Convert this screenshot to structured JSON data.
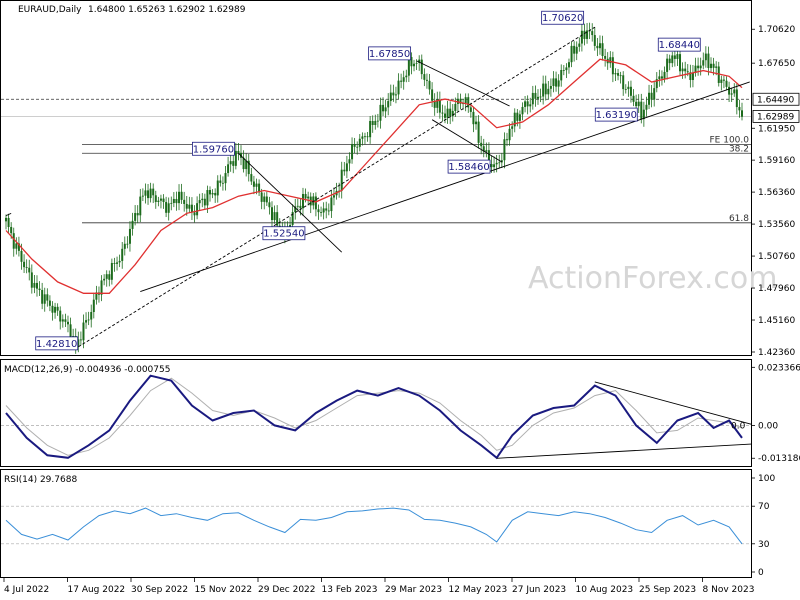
{
  "header": {
    "symbol": "EURAUD,Daily",
    "ohlc": "1.64800 1.65263 1.62902 1.62989"
  },
  "watermark": "ActionForex.com",
  "chart_data": [
    {
      "type": "candlestick",
      "title": "EURAUD,Daily",
      "ohlc_last": {
        "open": 1.648,
        "high": 1.65263,
        "low": 1.62902,
        "close": 1.62989
      },
      "ylim": [
        1.4236,
        1.7248
      ],
      "yticks": [
        "1.70620",
        "1.67650",
        "1.64490",
        "1.62989",
        "1.61950",
        "1.59160",
        "1.56360",
        "1.53560",
        "1.50760",
        "1.47960",
        "1.45160",
        "1.42360"
      ],
      "y_axis_ticks": [
        1.7062,
        1.6765,
        1.6195,
        1.5916,
        1.5636,
        1.5356,
        1.5076,
        1.4796,
        1.4516,
        1.4236
      ],
      "x_dates": [
        "4 Jul 2022",
        "17 Aug 2022",
        "30 Sep 2022",
        "15 Nov 2022",
        "29 Dec 2022",
        "13 Feb 2023",
        "29 Mar 2023",
        "12 May 2023",
        "27 Jun 2023",
        "10 Aug 2023",
        "25 Sep 2023",
        "8 Nov 2023"
      ],
      "close_path": [
        [
          0,
          1.538
        ],
        [
          3,
          1.52
        ],
        [
          6,
          1.505
        ],
        [
          9,
          1.49
        ],
        [
          12,
          1.478
        ],
        [
          15,
          1.47
        ],
        [
          18,
          1.462
        ],
        [
          21,
          1.455
        ],
        [
          24,
          1.445
        ],
        [
          27,
          1.4281
        ],
        [
          30,
          1.445
        ],
        [
          33,
          1.46
        ],
        [
          36,
          1.48
        ],
        [
          39,
          1.49
        ],
        [
          42,
          1.5
        ],
        [
          45,
          1.51
        ],
        [
          48,
          1.53
        ],
        [
          51,
          1.55
        ],
        [
          54,
          1.565
        ],
        [
          57,
          1.56
        ],
        [
          60,
          1.555
        ],
        [
          63,
          1.55
        ],
        [
          66,
          1.56
        ],
        [
          69,
          1.555
        ],
        [
          72,
          1.545
        ],
        [
          75,
          1.555
        ],
        [
          78,
          1.56
        ],
        [
          81,
          1.565
        ],
        [
          84,
          1.575
        ],
        [
          87,
          1.59
        ],
        [
          90,
          1.5976
        ],
        [
          93,
          1.585
        ],
        [
          96,
          1.57
        ],
        [
          99,
          1.56
        ],
        [
          102,
          1.55
        ],
        [
          105,
          1.535
        ],
        [
          108,
          1.5254
        ],
        [
          111,
          1.545
        ],
        [
          114,
          1.555
        ],
        [
          117,
          1.56
        ],
        [
          120,
          1.55
        ],
        [
          123,
          1.545
        ],
        [
          126,
          1.555
        ],
        [
          129,
          1.57
        ],
        [
          132,
          1.59
        ],
        [
          135,
          1.605
        ],
        [
          138,
          1.61
        ],
        [
          141,
          1.62
        ],
        [
          144,
          1.63
        ],
        [
          147,
          1.64
        ],
        [
          150,
          1.65
        ],
        [
          153,
          1.66
        ],
        [
          156,
          1.675
        ],
        [
          159,
          1.6785
        ],
        [
          162,
          1.665
        ],
        [
          165,
          1.645
        ],
        [
          168,
          1.635
        ],
        [
          171,
          1.63
        ],
        [
          174,
          1.64
        ],
        [
          177,
          1.645
        ],
        [
          180,
          1.635
        ],
        [
          183,
          1.61
        ],
        [
          186,
          1.595
        ],
        [
          189,
          1.5846
        ],
        [
          192,
          1.595
        ],
        [
          195,
          1.62
        ],
        [
          198,
          1.63
        ],
        [
          201,
          1.64
        ],
        [
          204,
          1.645
        ],
        [
          207,
          1.65
        ],
        [
          210,
          1.655
        ],
        [
          213,
          1.66
        ],
        [
          216,
          1.67
        ],
        [
          219,
          1.685
        ],
        [
          222,
          1.695
        ],
        [
          225,
          1.7062
        ],
        [
          228,
          1.695
        ],
        [
          231,
          1.685
        ],
        [
          234,
          1.675
        ],
        [
          237,
          1.665
        ],
        [
          240,
          1.655
        ],
        [
          243,
          1.645
        ],
        [
          246,
          1.6319
        ],
        [
          249,
          1.645
        ],
        [
          252,
          1.66
        ],
        [
          255,
          1.67
        ],
        [
          258,
          1.6844
        ],
        [
          261,
          1.675
        ],
        [
          264,
          1.665
        ],
        [
          267,
          1.67
        ],
        [
          270,
          1.68
        ],
        [
          273,
          1.676
        ],
        [
          276,
          1.665
        ],
        [
          279,
          1.655
        ],
        [
          282,
          1.648
        ],
        [
          285,
          1.6299
        ]
      ],
      "series": [
        {
          "name": "",
          "color": "#e03030",
          "values": [
            [
              0,
              1.53
            ],
            [
              10,
              1.505
            ],
            [
              20,
              1.485
            ],
            [
              30,
              1.475
            ],
            [
              40,
              1.475
            ],
            [
              50,
              1.5
            ],
            [
              60,
              1.53
            ],
            [
              70,
              1.545
            ],
            [
              80,
              1.55
            ],
            [
              90,
              1.56
            ],
            [
              100,
              1.565
            ],
            [
              110,
              1.56
            ],
            [
              120,
              1.555
            ],
            [
              130,
              1.565
            ],
            [
              140,
              1.59
            ],
            [
              150,
              1.615
            ],
            [
              160,
              1.64
            ],
            [
              170,
              1.645
            ],
            [
              180,
              1.64
            ],
            [
              190,
              1.62
            ],
            [
              200,
              1.625
            ],
            [
              210,
              1.64
            ],
            [
              220,
              1.66
            ],
            [
              230,
              1.68
            ],
            [
              240,
              1.675
            ],
            [
              250,
              1.66
            ],
            [
              260,
              1.665
            ],
            [
              270,
              1.67
            ],
            [
              280,
              1.665
            ],
            [
              285,
              1.655
            ]
          ]
        }
      ],
      "annotations": [
        "1.70620",
        "1.67850",
        "1.68440",
        "1.59760",
        "1.63190",
        "1.58460",
        "1.52540",
        "1.42810"
      ],
      "levels": [
        {
          "value": 1.6449,
          "label": "1.64490",
          "style": "dashed"
        },
        {
          "value": 1.60518,
          "label": "FE 100.0",
          "style": "solid"
        },
        {
          "value": 1.5976,
          "label": "38.2",
          "style": "solid"
        },
        {
          "value": 1.5367,
          "label": "61.8",
          "style": "solid"
        }
      ],
      "grid": false
    },
    {
      "type": "line",
      "title": "MACD(12,26,9) -0.004936 -0.000755",
      "ylim": [
        -0.0155,
        0.0255
      ],
      "yticks": [
        "0.023366",
        "0.00",
        "0.0",
        "-0.013186"
      ],
      "y_axis_ticks": [
        0.023366,
        0.0,
        -0.013186
      ],
      "series": [
        {
          "name": "",
          "color": "#1a1a80",
          "values": [
            [
              0,
              0.005
            ],
            [
              8,
              -0.005
            ],
            [
              16,
              -0.012
            ],
            [
              24,
              -0.013
            ],
            [
              32,
              -0.008
            ],
            [
              40,
              -0.002
            ],
            [
              48,
              0.01
            ],
            [
              56,
              0.02
            ],
            [
              64,
              0.018
            ],
            [
              72,
              0.008
            ],
            [
              80,
              0.002
            ],
            [
              88,
              0.005
            ],
            [
              96,
              0.006
            ],
            [
              104,
              0.0
            ],
            [
              112,
              -0.002
            ],
            [
              120,
              0.005
            ],
            [
              128,
              0.01
            ],
            [
              136,
              0.014
            ],
            [
              144,
              0.012
            ],
            [
              152,
              0.015
            ],
            [
              160,
              0.012
            ],
            [
              168,
              0.006
            ],
            [
              176,
              -0.002
            ],
            [
              184,
              -0.008
            ],
            [
              190,
              -0.013
            ],
            [
              196,
              -0.004
            ],
            [
              204,
              0.004
            ],
            [
              212,
              0.007
            ],
            [
              220,
              0.008
            ],
            [
              228,
              0.016
            ],
            [
              236,
              0.012
            ],
            [
              244,
              0.0
            ],
            [
              252,
              -0.007
            ],
            [
              260,
              0.002
            ],
            [
              268,
              0.005
            ],
            [
              274,
              -0.001
            ],
            [
              280,
              0.002
            ],
            [
              285,
              -0.005
            ]
          ]
        },
        {
          "name": "",
          "color": "#b0b0b0",
          "values": [
            [
              0,
              0.008
            ],
            [
              8,
              -0.001
            ],
            [
              16,
              -0.008
            ],
            [
              24,
              -0.012
            ],
            [
              32,
              -0.01
            ],
            [
              40,
              -0.005
            ],
            [
              48,
              0.004
            ],
            [
              56,
              0.014
            ],
            [
              64,
              0.019
            ],
            [
              72,
              0.013
            ],
            [
              80,
              0.006
            ],
            [
              88,
              0.004
            ],
            [
              96,
              0.006
            ],
            [
              104,
              0.003
            ],
            [
              112,
              -0.001
            ],
            [
              120,
              0.002
            ],
            [
              128,
              0.007
            ],
            [
              136,
              0.012
            ],
            [
              144,
              0.013
            ],
            [
              152,
              0.014
            ],
            [
              160,
              0.013
            ],
            [
              168,
              0.009
            ],
            [
              176,
              0.002
            ],
            [
              184,
              -0.004
            ],
            [
              190,
              -0.01
            ],
            [
              196,
              -0.008
            ],
            [
              204,
              0.0
            ],
            [
              212,
              0.005
            ],
            [
              220,
              0.007
            ],
            [
              228,
              0.012
            ],
            [
              236,
              0.014
            ],
            [
              244,
              0.006
            ],
            [
              252,
              -0.003
            ],
            [
              260,
              -0.002
            ],
            [
              268,
              0.003
            ],
            [
              274,
              0.002
            ],
            [
              280,
              0.001
            ],
            [
              285,
              -0.001
            ]
          ]
        }
      ],
      "grid": false
    },
    {
      "type": "line",
      "title": "RSI(14) 29.7688",
      "ylim": [
        0,
        100
      ],
      "yticks": [
        "100",
        "70",
        "30",
        "0"
      ],
      "y_axis_ticks": [
        100,
        70,
        30,
        0
      ],
      "series": [
        {
          "name": "",
          "color": "#3a8fd8",
          "values": [
            [
              0,
              55
            ],
            [
              6,
              40
            ],
            [
              12,
              35
            ],
            [
              18,
              40
            ],
            [
              24,
              34
            ],
            [
              30,
              48
            ],
            [
              36,
              60
            ],
            [
              42,
              65
            ],
            [
              48,
              62
            ],
            [
              54,
              68
            ],
            [
              60,
              60
            ],
            [
              66,
              62
            ],
            [
              72,
              58
            ],
            [
              78,
              55
            ],
            [
              84,
              62
            ],
            [
              90,
              63
            ],
            [
              96,
              55
            ],
            [
              102,
              48
            ],
            [
              108,
              42
            ],
            [
              114,
              56
            ],
            [
              120,
              55
            ],
            [
              126,
              58
            ],
            [
              132,
              64
            ],
            [
              138,
              65
            ],
            [
              144,
              67
            ],
            [
              150,
              68
            ],
            [
              156,
              66
            ],
            [
              162,
              56
            ],
            [
              168,
              55
            ],
            [
              174,
              52
            ],
            [
              180,
              48
            ],
            [
              186,
              40
            ],
            [
              190,
              32
            ],
            [
              196,
              55
            ],
            [
              202,
              64
            ],
            [
              208,
              62
            ],
            [
              214,
              60
            ],
            [
              220,
              64
            ],
            [
              226,
              62
            ],
            [
              232,
              58
            ],
            [
              238,
              52
            ],
            [
              244,
              45
            ],
            [
              250,
              42
            ],
            [
              256,
              55
            ],
            [
              262,
              60
            ],
            [
              268,
              50
            ],
            [
              274,
              55
            ],
            [
              280,
              48
            ],
            [
              285,
              30
            ]
          ]
        }
      ],
      "grid": false
    }
  ]
}
